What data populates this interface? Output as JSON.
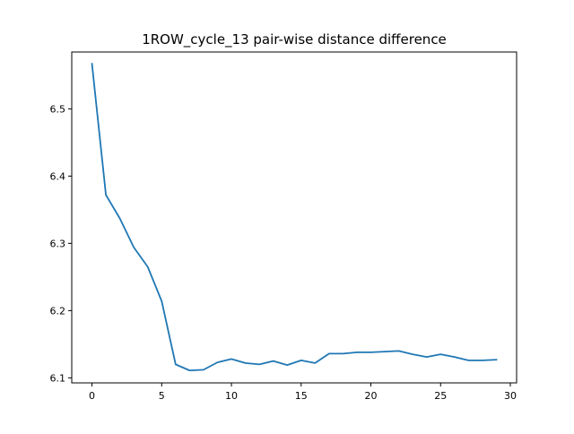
{
  "chart_data": {
    "type": "line",
    "title": "1ROW_cycle_13 pair-wise distance difference",
    "xlabel": "",
    "ylabel": "",
    "xlim": [
      -1.45,
      30.45
    ],
    "ylim": [
      6.0925,
      6.5845
    ],
    "xticks": [
      0,
      5,
      10,
      15,
      20,
      25,
      30
    ],
    "yticks": [
      6.1,
      6.2,
      6.3,
      6.4,
      6.5
    ],
    "ytick_labels": [
      "6.1",
      "6.2",
      "6.3",
      "6.4",
      "6.5"
    ],
    "grid": false,
    "series": [
      {
        "name": "",
        "color": "#1f77b4",
        "x": [
          0,
          1,
          2,
          3,
          4,
          5,
          6,
          7,
          8,
          9,
          10,
          11,
          12,
          13,
          14,
          15,
          16,
          17,
          18,
          19,
          20,
          21,
          22,
          23,
          24,
          25,
          26,
          27,
          28,
          29
        ],
        "y": [
          6.567,
          6.372,
          6.337,
          6.294,
          6.265,
          6.214,
          6.12,
          6.111,
          6.112,
          6.123,
          6.128,
          6.122,
          6.12,
          6.125,
          6.119,
          6.126,
          6.122,
          6.136,
          6.136,
          6.138,
          6.138,
          6.139,
          6.14,
          6.135,
          6.131,
          6.135,
          6.131,
          6.126,
          6.126,
          6.127
        ]
      }
    ]
  }
}
